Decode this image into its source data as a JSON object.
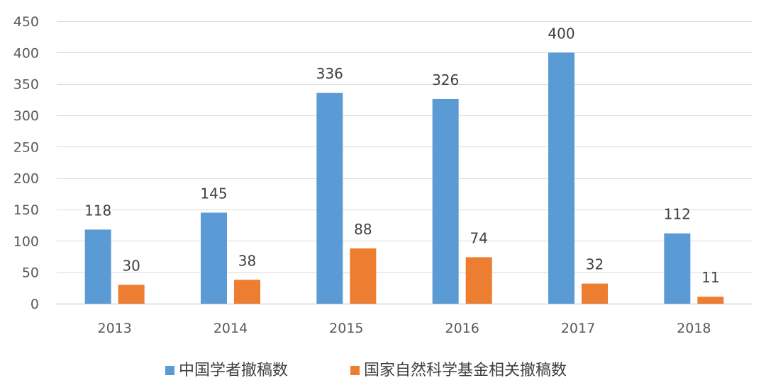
{
  "chart_data": {
    "type": "bar",
    "categories": [
      "2013",
      "2014",
      "2015",
      "2016",
      "2017",
      "2018"
    ],
    "series": [
      {
        "name": "中国学者撤稿数",
        "values": [
          118,
          145,
          336,
          326,
          400,
          112
        ],
        "color": "#5b9bd5"
      },
      {
        "name": "国家自然科学基金相关撤稿数",
        "values": [
          30,
          38,
          88,
          74,
          32,
          11
        ],
        "color": "#ed7d31"
      }
    ],
    "ylim": [
      0,
      450
    ],
    "yticks": [
      0,
      50,
      100,
      150,
      200,
      250,
      300,
      350,
      400,
      450
    ],
    "grid": true,
    "legend": "bottom",
    "data_labels": true
  }
}
